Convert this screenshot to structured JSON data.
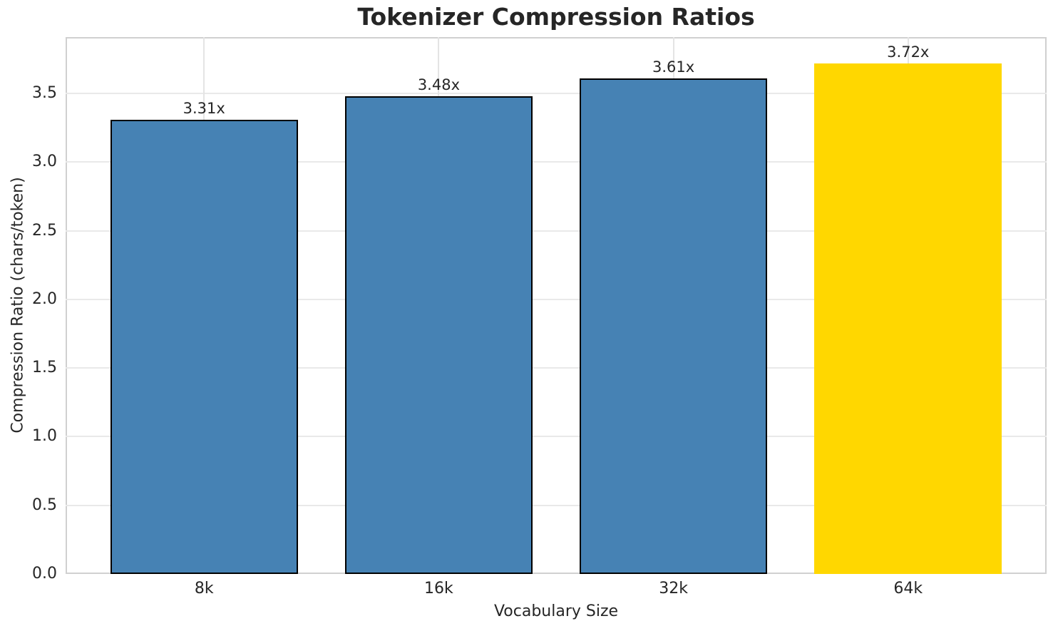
{
  "chart_data": {
    "type": "bar",
    "title": "Tokenizer Compression Ratios",
    "xlabel": "Vocabulary Size",
    "ylabel": "Compression Ratio (chars/token)",
    "categories": [
      "8k",
      "16k",
      "32k",
      "64k"
    ],
    "values": [
      3.31,
      3.48,
      3.61,
      3.72
    ],
    "value_labels": [
      "3.31x",
      "3.48x",
      "3.61x",
      "3.72x"
    ],
    "bar_colors": [
      "#4682b4",
      "#4682b4",
      "#4682b4",
      "#ffd700"
    ],
    "bar_edge_colors": [
      "#000000",
      "#000000",
      "#000000",
      "none"
    ],
    "highlight_index": 3,
    "ylim": [
      0,
      3.91
    ],
    "yticks": [
      0.0,
      0.5,
      1.0,
      1.5,
      2.0,
      2.5,
      3.0,
      3.5
    ],
    "ytick_labels": [
      "0.0",
      "0.5",
      "1.0",
      "1.5",
      "2.0",
      "2.5",
      "3.0",
      "3.5"
    ],
    "grid": true,
    "legend": "none",
    "colors": {
      "bar_blue": "#4682b4",
      "bar_gold": "#ffd700",
      "grid": "#e9e9e9",
      "spine": "#d0d0d0",
      "text": "#262626"
    }
  }
}
